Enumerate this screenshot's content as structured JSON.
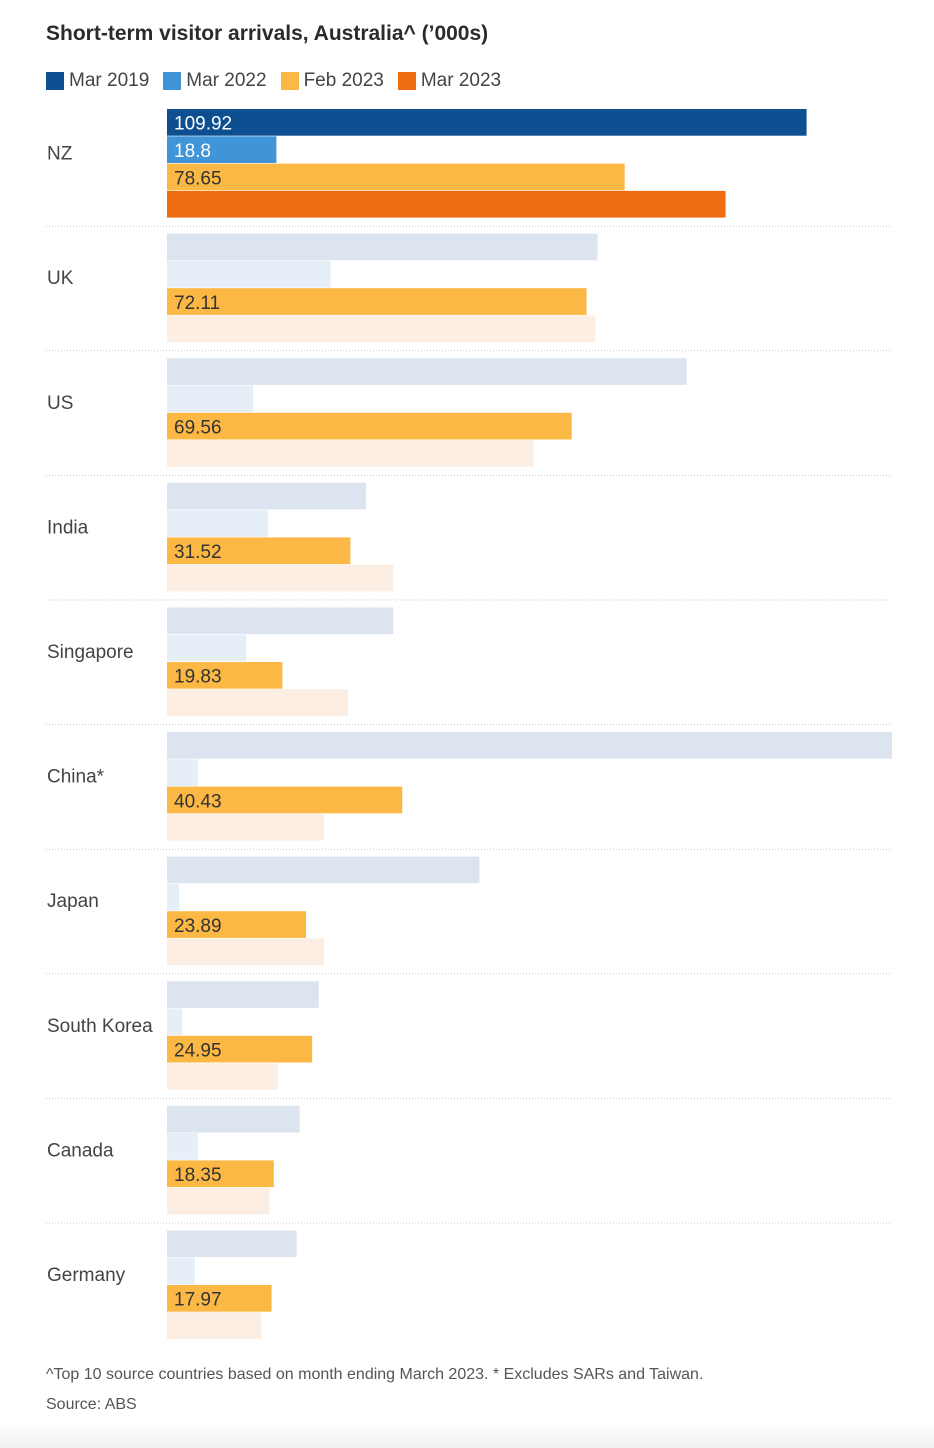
{
  "chart_data": {
    "type": "bar",
    "orientation": "horizontal",
    "title": "Short-term visitor arrivals, Australia^ (’000s)",
    "categories": [
      "NZ",
      "UK",
      "US",
      "India",
      "Singapore",
      "China*",
      "Japan",
      "South Korea",
      "Canada",
      "Germany"
    ],
    "series": [
      {
        "name": "Mar 2019",
        "color": "#0e4f91",
        "muted_color": "#dce5ef",
        "values": [
          109.92,
          74.0,
          89.3,
          34.2,
          38.9,
          124.6,
          53.7,
          26.1,
          22.8,
          22.3
        ],
        "value_labels": [
          "109.92",
          "",
          "",
          "",
          "",
          "",
          "",
          "",
          "",
          ""
        ]
      },
      {
        "name": "Mar 2022",
        "color": "#3f95d8",
        "muted_color": "#e6eef8",
        "values": [
          18.8,
          28.1,
          14.8,
          17.4,
          13.6,
          5.3,
          2.1,
          2.6,
          5.3,
          4.8
        ],
        "value_labels": [
          "18.8",
          "",
          "",
          "",
          "",
          "",
          "",
          "",
          "",
          ""
        ]
      },
      {
        "name": "Feb 2023",
        "color": "#fcb844",
        "muted_color": "#fcb844",
        "values": [
          78.65,
          72.11,
          69.56,
          31.52,
          19.83,
          40.43,
          23.89,
          24.95,
          18.35,
          17.97
        ],
        "value_labels": [
          "78.65",
          "72.11",
          "69.56",
          "31.52",
          "19.83",
          "40.43",
          "23.89",
          "24.95",
          "18.35",
          "17.97"
        ]
      },
      {
        "name": "Mar 2023",
        "color": "#ef6d12",
        "muted_color": "#fdeee3",
        "values": [
          96.0,
          73.6,
          63.0,
          38.9,
          31.1,
          27.0,
          27.0,
          19.1,
          17.6,
          16.2
        ],
        "value_labels": [
          "",
          "",
          "",
          "",
          "",
          "",
          "",
          "",
          "",
          ""
        ]
      }
    ],
    "highlight_category": "NZ",
    "xlim": [
      0,
      124.6
    ],
    "grid": false,
    "legend_position": "top-left",
    "footnote": "^Top 10 source countries based on month ending March 2023. * Excludes SARs and Taiwan.",
    "source": "Source: ABS"
  }
}
